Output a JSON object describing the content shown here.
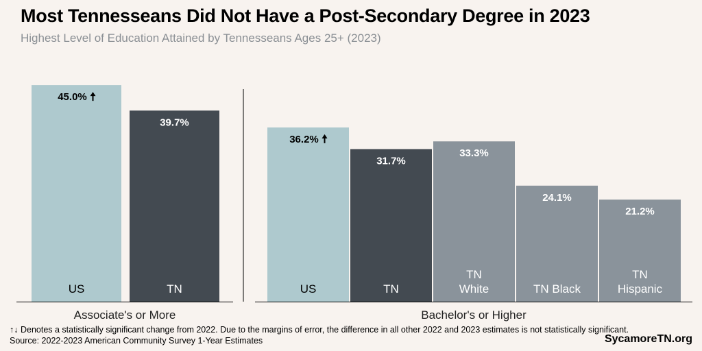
{
  "header": {
    "title": "Most Tennesseans Did Not Have a Post-Secondary Degree in 2023",
    "subtitle": "Highest Level of Education Attained by Tennesseans Ages 25+ (2023)"
  },
  "chart_data": [
    {
      "type": "bar",
      "x_label": "Associate's or More",
      "categories": [
        "US",
        "TN"
      ],
      "values": [
        45.0,
        39.7
      ],
      "value_labels": [
        "45.0%",
        "39.7%"
      ],
      "significant": [
        true,
        false
      ],
      "colors": [
        "#aec9ce",
        "#434a51"
      ],
      "ylim": [
        0,
        50
      ]
    },
    {
      "type": "bar",
      "x_label": "Bachelor's or Higher",
      "categories": [
        "US",
        "TN",
        "TN White",
        "TN Black",
        "TN Hispanic"
      ],
      "values": [
        36.2,
        31.7,
        33.3,
        24.1,
        21.2
      ],
      "value_labels": [
        "36.2%",
        "31.7%",
        "33.3%",
        "24.1%",
        "21.2%"
      ],
      "significant": [
        true,
        false,
        false,
        false,
        false
      ],
      "colors": [
        "#aec9ce",
        "#434a51",
        "#8a939b",
        "#8a939b",
        "#8a939b"
      ],
      "ylim": [
        0,
        50
      ]
    }
  ],
  "footer": {
    "note": "↑↓ Denotes a statistically significant change from 2022. Due to the margins of error, the difference in all other 2022 and 2023 estimates is not statistically significant.",
    "source": "Source: 2022-2023 American Community Survey 1-Year Estimates",
    "brand": "SycamoreTN.org"
  }
}
